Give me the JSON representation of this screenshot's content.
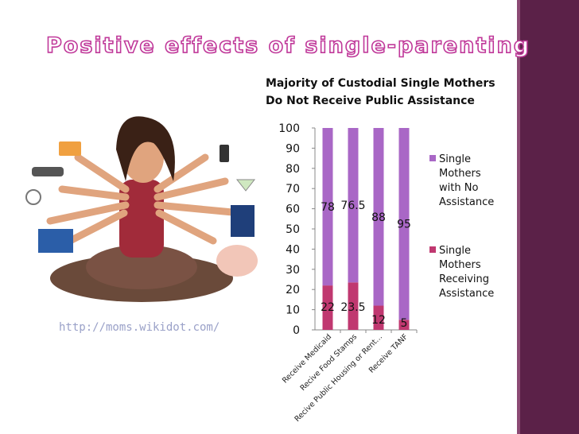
{
  "slide": {
    "title": "Positive effects of single-parenting",
    "credit": "http://moms.wikidot.com/"
  },
  "illustration": {
    "description_icon": "multitasking-mother-illustration-icon"
  },
  "colors": {
    "accent_bar": "#5b2148",
    "title_outline": "#c0399a",
    "no_assistance": "#a967c6",
    "receiving": "#c03870"
  },
  "chart_data": {
    "type": "bar",
    "stacked": true,
    "title_lines": [
      "Majority of Custodial Single Mothers",
      "Do Not Receive Public Assistance"
    ],
    "categories": [
      "Receive Medicaid",
      "Recive Food Stamps",
      "Recive Public Housing or Rent…",
      "Receive TANF"
    ],
    "series": [
      {
        "name": "Single Mothers Receiving Assistance",
        "legend_lines": [
          "Single",
          "Mothers",
          "Receiving",
          "Assistance"
        ],
        "values": [
          22,
          23.5,
          12,
          5
        ]
      },
      {
        "name": "Single Mothers with No Assistance",
        "legend_lines": [
          "Single",
          "Mothers",
          "with No",
          "Assistance"
        ],
        "values": [
          78,
          76.5,
          88,
          95
        ]
      }
    ],
    "data_labels": {
      "receiving": [
        "22",
        "23.5",
        "12",
        "5"
      ],
      "no_assistance": [
        "78",
        "76.5",
        "88",
        "95"
      ]
    },
    "yticks": [
      "0",
      "10",
      "20",
      "30",
      "40",
      "50",
      "60",
      "70",
      "80",
      "90",
      "100"
    ],
    "ylim": [
      0,
      100
    ],
    "xlabel": "",
    "ylabel": "",
    "grid": false,
    "legend_position": "right"
  }
}
